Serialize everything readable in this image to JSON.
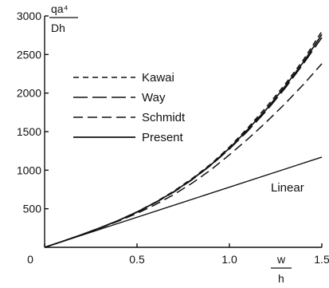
{
  "chart_data": {
    "type": "line",
    "title": "",
    "ylabel": {
      "numerator": "qa⁴",
      "denominator": "Dh"
    },
    "xlabel": {
      "numerator": "w",
      "denominator": "h"
    },
    "xlim": [
      0,
      1.5
    ],
    "ylim": [
      0,
      3000
    ],
    "x_ticks": [
      "0",
      "0.5",
      "1.0",
      "1.5"
    ],
    "y_ticks": [
      "500",
      "1000",
      "1500",
      "2000",
      "2500",
      "3000"
    ],
    "grid": false,
    "legend_position": "top-left",
    "annotation": "Linear",
    "series": [
      {
        "name": "Kawai",
        "dash": "short-dash",
        "x": [
          0,
          0.1,
          0.2,
          0.3,
          0.4,
          0.5,
          0.6,
          0.7,
          0.8,
          0.9,
          1.0,
          1.1,
          1.2,
          1.3,
          1.4,
          1.5
        ],
        "y": [
          0,
          80,
          163,
          252,
          350,
          460,
          585,
          730,
          895,
          1080,
          1300,
          1550,
          1820,
          2110,
          2430,
          2800
        ]
      },
      {
        "name": "Way",
        "dash": "long-dash",
        "x": [
          0,
          0.1,
          0.2,
          0.3,
          0.4,
          0.5,
          0.6,
          0.7,
          0.8,
          0.9,
          1.0,
          1.1,
          1.2,
          1.3,
          1.4,
          1.5
        ],
        "y": [
          0,
          80,
          163,
          252,
          348,
          455,
          578,
          718,
          880,
          1065,
          1275,
          1510,
          1770,
          2060,
          2380,
          2720
        ]
      },
      {
        "name": "Schmidt",
        "dash": "medium-dash",
        "x": [
          0,
          0.1,
          0.2,
          0.3,
          0.4,
          0.5,
          0.6,
          0.7,
          0.8,
          0.9,
          1.0,
          1.1,
          1.2,
          1.3,
          1.4,
          1.5
        ],
        "y": [
          0,
          80,
          162,
          248,
          340,
          440,
          555,
          685,
          835,
          1005,
          1200,
          1405,
          1625,
          1860,
          2110,
          2380
        ]
      },
      {
        "name": "Present",
        "dash": "solid",
        "x": [
          0,
          0.1,
          0.2,
          0.3,
          0.4,
          0.5,
          0.6,
          0.7,
          0.8,
          0.9,
          1.0,
          1.1,
          1.2,
          1.3,
          1.4,
          1.5
        ],
        "y": [
          0,
          80,
          163,
          252,
          349,
          458,
          582,
          722,
          885,
          1070,
          1285,
          1530,
          1790,
          2085,
          2400,
          2760
        ]
      },
      {
        "name": "Linear",
        "dash": "solid",
        "x": [
          0,
          1.5
        ],
        "y": [
          0,
          1170
        ]
      }
    ]
  }
}
